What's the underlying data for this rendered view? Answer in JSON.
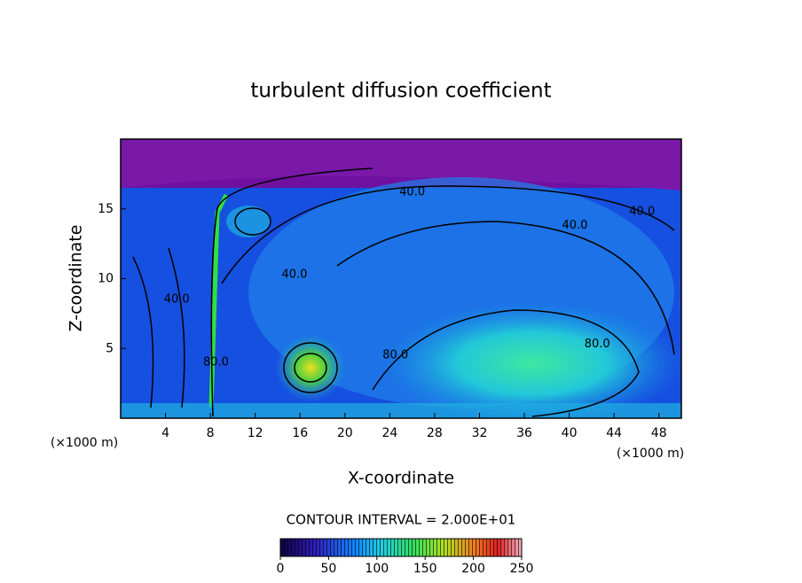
{
  "chart_data": {
    "type": "contour",
    "title": "turbulent diffusion coefficient",
    "x_label": "X-coordinate",
    "y_label": "Z-coordinate",
    "x_unit": "(×1000 m)",
    "y_unit": "(×1000 m)",
    "xlim": [
      0,
      50
    ],
    "xticks": [
      4,
      8,
      12,
      16,
      20,
      24,
      28,
      32,
      36,
      40,
      44,
      48
    ],
    "ylim": [
      0,
      20
    ],
    "yticks": [
      5,
      10,
      15
    ],
    "contour_labels": [
      {
        "text": "40.0",
        "x": 26,
        "y": 16.2
      },
      {
        "text": "40.0",
        "x": 40.5,
        "y": 13.8
      },
      {
        "text": "40.0",
        "x": 46.5,
        "y": 14.8
      },
      {
        "text": "40.0",
        "x": 15.5,
        "y": 10.3
      },
      {
        "text": "80.0",
        "x": 42.5,
        "y": 5.3
      },
      {
        "text": "80.0",
        "x": 24.5,
        "y": 4.5
      },
      {
        "text": "80.0",
        "x": 8.5,
        "y": 4.0
      },
      {
        "text": "40.0",
        "x": 5,
        "y": 8.5
      }
    ],
    "colorbar": {
      "label": "CONTOUR INTERVAL = 2.000E+01",
      "lim": [
        0,
        250
      ],
      "ticks": [
        0,
        50,
        100,
        150,
        200,
        250
      ]
    }
  }
}
